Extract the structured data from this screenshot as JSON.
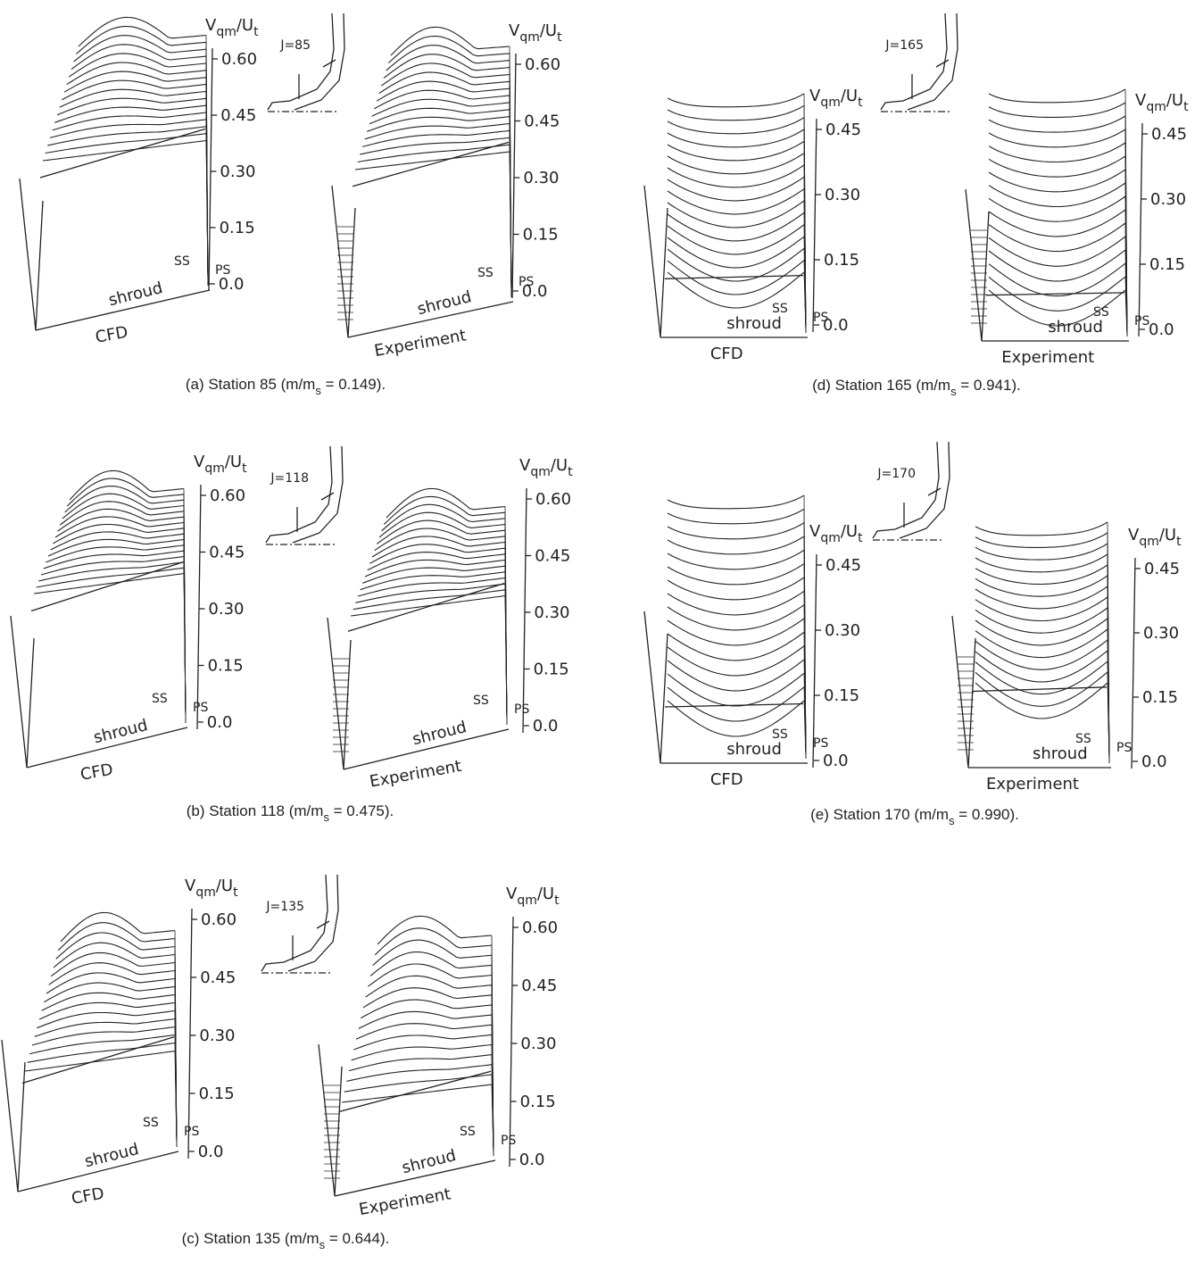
{
  "panels": [
    {
      "caption": {
        "text": "(a) Station 85 (m/m",
        "sub": "s",
        "rest": " = 0.149)."
      },
      "station": "J=85",
      "plots": [
        {
          "axis_label": {
            "v": "V",
            "sub1": "qm",
            "slash": "/U",
            "sub2": "t"
          },
          "ticks": [
            "0.60",
            "0.45",
            "0.30",
            "0.15",
            "0.0"
          ],
          "ss": "SS",
          "ps": "PS",
          "wall": "shroud",
          "name": "CFD"
        },
        {
          "axis_label": {
            "v": "V",
            "sub1": "qm",
            "slash": "/U",
            "sub2": "t"
          },
          "ticks": [
            "0.60",
            "0.45",
            "0.30",
            "0.15",
            "0.0"
          ],
          "ss": "SS",
          "ps": "PS",
          "wall": "shroud",
          "name": "Experiment"
        }
      ]
    },
    {
      "caption": {
        "text": "(b) Station 118 (m/m",
        "sub": "s",
        "rest": " = 0.475)."
      },
      "station": "J=118",
      "plots": [
        {
          "axis_label": {
            "v": "V",
            "sub1": "qm",
            "slash": "/U",
            "sub2": "t"
          },
          "ticks": [
            "0.60",
            "0.45",
            "0.30",
            "0.15",
            "0.0"
          ],
          "ss": "SS",
          "ps": "PS",
          "wall": "shroud",
          "name": "CFD"
        },
        {
          "axis_label": {
            "v": "V",
            "sub1": "qm",
            "slash": "/U",
            "sub2": "t"
          },
          "ticks": [
            "0.60",
            "0.45",
            "0.30",
            "0.15",
            "0.0"
          ],
          "ss": "SS",
          "ps": "PS",
          "wall": "shroud",
          "name": "Experiment"
        }
      ]
    },
    {
      "caption": {
        "text": "(c) Station 135 (m/m",
        "sub": "s",
        "rest": " = 0.644)."
      },
      "station": "J=135",
      "plots": [
        {
          "axis_label": {
            "v": "V",
            "sub1": "qm",
            "slash": "/U",
            "sub2": "t"
          },
          "ticks": [
            "0.60",
            "0.45",
            "0.30",
            "0.15",
            "0.0"
          ],
          "ss": "SS",
          "ps": "PS",
          "wall": "shroud",
          "name": "CFD"
        },
        {
          "axis_label": {
            "v": "V",
            "sub1": "qm",
            "slash": "/U",
            "sub2": "t"
          },
          "ticks": [
            "0.60",
            "0.45",
            "0.30",
            "0.15",
            "0.0"
          ],
          "ss": "SS",
          "ps": "PS",
          "wall": "shroud",
          "name": "Experiment"
        }
      ]
    },
    {
      "caption": {
        "text": "(d) Station 165 (m/m",
        "sub": "s",
        "rest": " = 0.941)."
      },
      "station": "J=165",
      "plots": [
        {
          "axis_label": {
            "v": "V",
            "sub1": "qm",
            "slash": "/U",
            "sub2": "t"
          },
          "ticks": [
            "0.45",
            "0.30",
            "0.15",
            "0.0"
          ],
          "ss": "SS",
          "ps": "PS",
          "wall": "shroud",
          "name": "CFD"
        },
        {
          "axis_label": {
            "v": "V",
            "sub1": "qm",
            "slash": "/U",
            "sub2": "t"
          },
          "ticks": [
            "0.45",
            "0.30",
            "0.15",
            "0.0"
          ],
          "ss": "SS",
          "ps": "PS",
          "wall": "shroud",
          "name": "Experiment"
        }
      ]
    },
    {
      "caption": {
        "text": "(e) Station 170 (m/m",
        "sub": "s",
        "rest": " = 0.990)."
      },
      "station": "J=170",
      "plots": [
        {
          "axis_label": {
            "v": "V",
            "sub1": "qm",
            "slash": "/U",
            "sub2": "t"
          },
          "ticks": [
            "0.45",
            "0.30",
            "0.15",
            "0.0"
          ],
          "ss": "SS",
          "ps": "PS",
          "wall": "shroud",
          "name": "CFD"
        },
        {
          "axis_label": {
            "v": "V",
            "sub1": "qm",
            "slash": "/U",
            "sub2": "t"
          },
          "ticks": [
            "0.45",
            "0.30",
            "0.15",
            "0.0"
          ],
          "ss": "SS",
          "ps": "PS",
          "wall": "shroud",
          "name": "Experiment"
        }
      ]
    }
  ]
}
